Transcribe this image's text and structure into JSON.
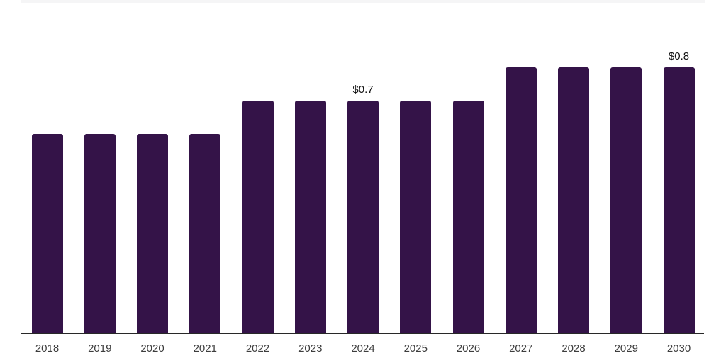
{
  "chart_data": {
    "type": "bar",
    "categories": [
      "2018",
      "2019",
      "2020",
      "2021",
      "2022",
      "2023",
      "2024",
      "2025",
      "2026",
      "2027",
      "2028",
      "2029",
      "2030"
    ],
    "values": [
      0.6,
      0.6,
      0.6,
      0.6,
      0.7,
      0.7,
      0.7,
      0.7,
      0.7,
      0.8,
      0.8,
      0.8,
      0.8
    ],
    "title": "",
    "xlabel": "",
    "ylabel": "",
    "ylim": [
      0,
      0.85
    ],
    "grid": "off",
    "legend": "none",
    "bar_color": "#341348",
    "axis_line_color": "#282828",
    "top_strip_color": "#f5f5f6",
    "tick_label_color": "#3d3d3d",
    "annotation_color": "#111111",
    "annotations": [
      {
        "category": "2024",
        "label": "$0.7"
      },
      {
        "category": "2030",
        "label": "$0.8"
      }
    ]
  }
}
